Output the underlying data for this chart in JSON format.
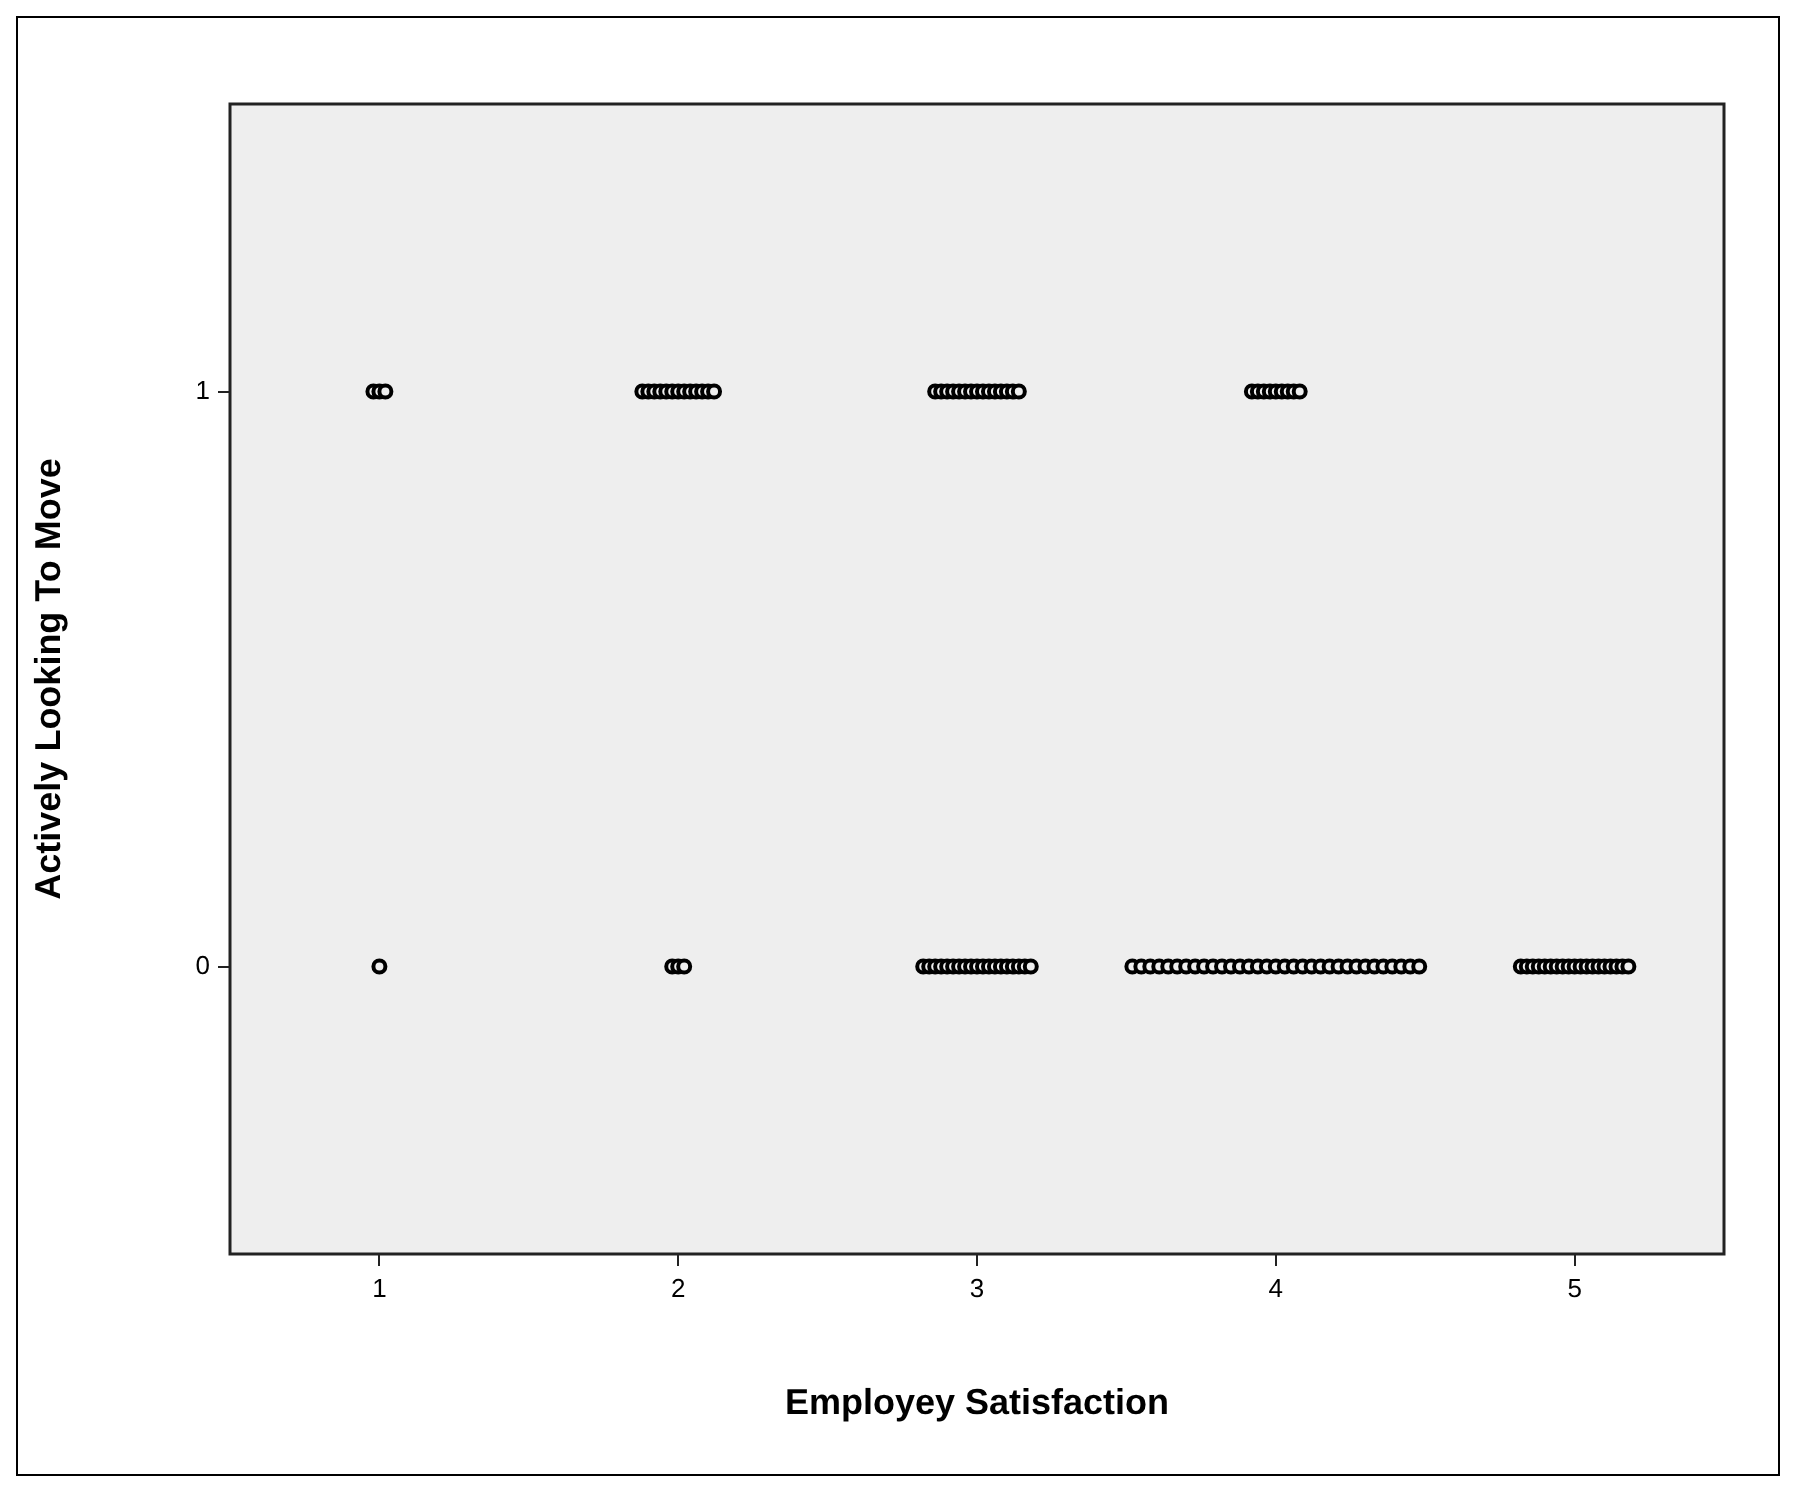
{
  "chart_data": {
    "type": "scatter",
    "xlabel": "Employey Satisfaction",
    "ylabel": "Actively Looking To Move",
    "x": [
      0.98,
      1,
      1.02,
      1.88,
      1.9,
      1.92,
      1.94,
      1.96,
      1.98,
      2,
      2.02,
      2.04,
      2.06,
      2.08,
      2.1,
      2.12,
      2.86,
      2.88,
      2.9,
      2.92,
      2.94,
      2.96,
      2.98,
      3,
      3.02,
      3.04,
      3.06,
      3.08,
      3.1,
      3.12,
      3.14,
      3.92,
      3.94,
      3.96,
      3.98,
      4,
      4.02,
      4.04,
      4.06,
      4.08,
      1,
      1.98,
      2,
      2.02,
      2.82,
      2.84,
      2.86,
      2.88,
      2.9,
      2.92,
      2.94,
      2.96,
      2.98,
      3,
      3.02,
      3.04,
      3.06,
      3.08,
      3.1,
      3.12,
      3.14,
      3.16,
      3.18,
      3.52,
      3.55,
      3.58,
      3.61,
      3.64,
      3.67,
      3.7,
      3.73,
      3.76,
      3.79,
      3.82,
      3.85,
      3.88,
      3.91,
      3.94,
      3.97,
      4,
      4.03,
      4.06,
      4.09,
      4.12,
      4.15,
      4.18,
      4.21,
      4.24,
      4.27,
      4.3,
      4.33,
      4.36,
      4.39,
      4.42,
      4.45,
      4.48,
      4.82,
      4.84,
      4.86,
      4.88,
      4.9,
      4.92,
      4.94,
      4.96,
      4.98,
      5,
      5.02,
      5.04,
      5.06,
      5.08,
      5.1,
      5.12,
      5.14,
      5.16,
      5.18
    ],
    "values": [
      1,
      1,
      1,
      1,
      1,
      1,
      1,
      1,
      1,
      1,
      1,
      1,
      1,
      1,
      1,
      1,
      1,
      1,
      1,
      1,
      1,
      1,
      1,
      1,
      1,
      1,
      1,
      1,
      1,
      1,
      1,
      1,
      1,
      1,
      1,
      1,
      1,
      1,
      1,
      1,
      0,
      0,
      0,
      0,
      0,
      0,
      0,
      0,
      0,
      0,
      0,
      0,
      0,
      0,
      0,
      0,
      0,
      0,
      0,
      0,
      0,
      0,
      0,
      0,
      0,
      0,
      0,
      0,
      0,
      0,
      0,
      0,
      0,
      0,
      0,
      0,
      0,
      0,
      0,
      0,
      0,
      0,
      0,
      0,
      0,
      0,
      0,
      0,
      0,
      0,
      0,
      0,
      0,
      0,
      0,
      0,
      0,
      0,
      0,
      0,
      0,
      0,
      0,
      0,
      0,
      0,
      0,
      0,
      0,
      0,
      0,
      0,
      0,
      0,
      0
    ],
    "color": "#000000",
    "marker": "circle",
    "grid": false,
    "legend": false,
    "xlim": [
      0.5,
      5.5
    ],
    "xticks": [
      1,
      2,
      3,
      4,
      5
    ],
    "ylim": [
      -0.5,
      1.5
    ],
    "yticks": [
      0,
      1
    ]
  }
}
